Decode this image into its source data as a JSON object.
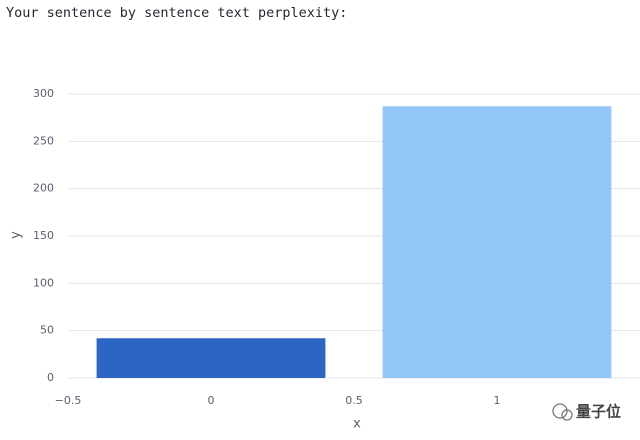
{
  "header": {
    "title": "Your sentence by sentence text perplexity:"
  },
  "chart_data": {
    "type": "bar",
    "x": [
      0,
      1
    ],
    "values": [
      42,
      287
    ],
    "colors": [
      "#2c65c4",
      "#93c6f8"
    ],
    "xlabel": "x",
    "ylabel": "y",
    "xlim": [
      -0.5,
      1.5
    ],
    "ylim": [
      0,
      302
    ],
    "xticks": [
      {
        "value": -0.5,
        "label": "−0.5"
      },
      0,
      0.5,
      1
    ],
    "yticks": [
      0,
      50,
      100,
      150,
      200,
      250,
      300
    ],
    "grid": true
  },
  "watermark": "量子位"
}
